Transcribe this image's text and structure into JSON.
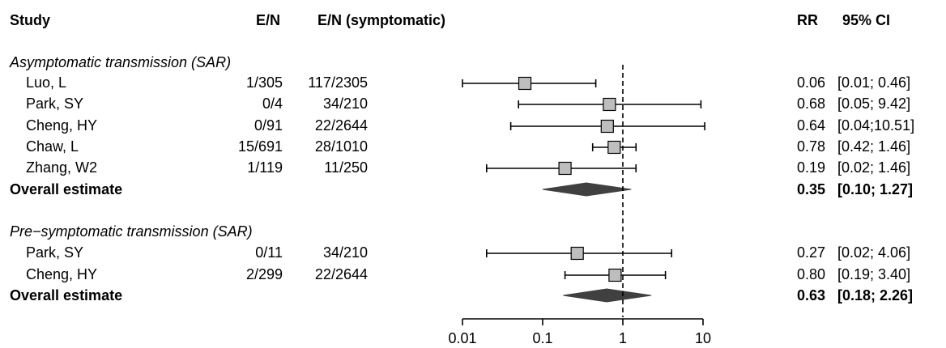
{
  "headers": {
    "study": "Study",
    "en": "E/N",
    "en_symptomatic": "E/N (symptomatic)",
    "rr": "RR",
    "ci": "95% CI"
  },
  "groups": [
    {
      "title": "Asymptomatic transmission (SAR)",
      "studies": [
        {
          "study": "Luo, L",
          "en": "1/305",
          "en_symptomatic": "117/2305",
          "rr": "0.06",
          "ci": "[0.01; 0.46]"
        },
        {
          "study": "Park, SY",
          "en": "0/4",
          "en_symptomatic": "34/210",
          "rr": "0.68",
          "ci": "[0.05; 9.42]"
        },
        {
          "study": "Cheng, HY",
          "en": "0/91",
          "en_symptomatic": "22/2644",
          "rr": "0.64",
          "ci": "[0.04;10.51]"
        },
        {
          "study": "Chaw, L",
          "en": "15/691",
          "en_symptomatic": "28/1010",
          "rr": "0.78",
          "ci": "[0.42; 1.46]"
        },
        {
          "study": "Zhang, W2",
          "en": "1/119",
          "en_symptomatic": "11/250",
          "rr": "0.19",
          "ci": "[0.02; 1.46]"
        }
      ],
      "overall": {
        "label": "Overall estimate",
        "rr": "0.35",
        "ci": "[0.10; 1.27]"
      }
    },
    {
      "title": "Pre−symptomatic transmission (SAR)",
      "studies": [
        {
          "study": "Park, SY",
          "en": "0/11",
          "en_symptomatic": "34/210",
          "rr": "0.27",
          "ci": "[0.02; 4.06]"
        },
        {
          "study": "Cheng, HY",
          "en": "2/299",
          "en_symptomatic": "22/2644",
          "rr": "0.80",
          "ci": "[0.19; 3.40]"
        }
      ],
      "overall": {
        "label": "Overall estimate",
        "rr": "0.63",
        "ci": "[0.18; 2.26]"
      }
    }
  ],
  "chart_data": {
    "type": "forest",
    "x_scale": "log",
    "xlim": [
      0.01,
      10
    ],
    "x_ticks": [
      0.01,
      0.1,
      1,
      10
    ],
    "x_tick_labels": [
      "0.01",
      "0.1",
      "1",
      "10"
    ],
    "reference_line": 1,
    "groups": [
      {
        "name": "Asymptomatic transmission (SAR)",
        "points": [
          {
            "study": "Luo, L",
            "rr": 0.06,
            "lower": 0.01,
            "upper": 0.46
          },
          {
            "study": "Park, SY",
            "rr": 0.68,
            "lower": 0.05,
            "upper": 9.42
          },
          {
            "study": "Cheng, HY",
            "rr": 0.64,
            "lower": 0.04,
            "upper": 10.51
          },
          {
            "study": "Chaw, L",
            "rr": 0.78,
            "lower": 0.42,
            "upper": 1.46
          },
          {
            "study": "Zhang, W2",
            "rr": 0.19,
            "lower": 0.02,
            "upper": 1.46
          }
        ],
        "overall": {
          "rr": 0.35,
          "lower": 0.1,
          "upper": 1.27
        }
      },
      {
        "name": "Pre−symptomatic transmission (SAR)",
        "points": [
          {
            "study": "Park, SY",
            "rr": 0.27,
            "lower": 0.02,
            "upper": 4.06
          },
          {
            "study": "Cheng, HY",
            "rr": 0.8,
            "lower": 0.19,
            "upper": 3.4
          }
        ],
        "overall": {
          "rr": 0.63,
          "lower": 0.18,
          "upper": 2.26
        }
      }
    ],
    "colors": {
      "box_fill": "#bebebe",
      "box_stroke": "#000000",
      "diamond": "#404040",
      "line": "#000000"
    }
  }
}
